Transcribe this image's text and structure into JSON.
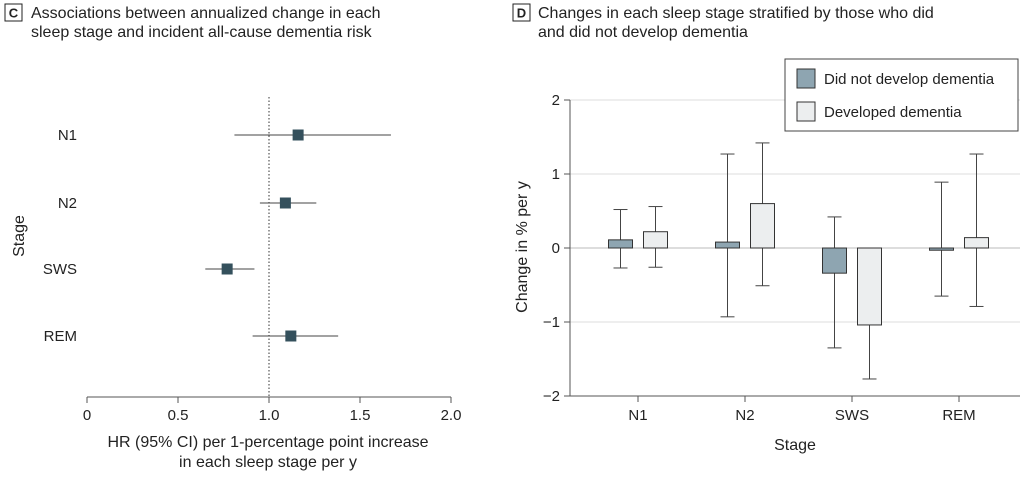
{
  "panel_c": {
    "letter": "C",
    "title_line1": "Associations between annualized change in each",
    "title_line2": "sleep stage and incident all-cause dementia risk"
  },
  "panel_d": {
    "letter": "D",
    "title_line1": "Changes in each sleep stage stratified by those who did",
    "title_line2": "and did not develop dementia"
  },
  "colors": {
    "marker": "#34505c",
    "bar_not_developed": "#8ea5b1",
    "bar_developed": "#eceeef",
    "axis": "#555555",
    "grid": "#dddddd"
  },
  "chart_data": [
    {
      "type": "forest",
      "xlabel_line1": "HR (95% CI) per 1-percentage point increase",
      "xlabel_line2": "in each sleep stage per y",
      "ylabel": "Stage",
      "xlim": [
        0,
        2.0
      ],
      "xticks": [
        "0",
        "0.5",
        "1.0",
        "1.5",
        "2.0"
      ],
      "reference_line": 1.0,
      "rows": [
        {
          "label": "N1",
          "hr": 1.16,
          "lo": 0.81,
          "hi": 1.67
        },
        {
          "label": "N2",
          "hr": 1.09,
          "lo": 0.95,
          "hi": 1.26
        },
        {
          "label": "SWS",
          "hr": 0.77,
          "lo": 0.65,
          "hi": 0.92
        },
        {
          "label": "REM",
          "hr": 1.12,
          "lo": 0.91,
          "hi": 1.38
        }
      ]
    },
    {
      "type": "bar",
      "xlabel": "Stage",
      "ylabel": "Change in % per y",
      "ylim": [
        -2,
        2
      ],
      "yticks": [
        "−2",
        "−1",
        "0",
        "1",
        "2"
      ],
      "grid": true,
      "legend_position": "top-right",
      "categories": [
        "N1",
        "N2",
        "SWS",
        "REM"
      ],
      "series": [
        {
          "name": "Did not develop dementia",
          "values": [
            0.11,
            0.08,
            -0.34,
            -0.03
          ],
          "err_lo": [
            -0.27,
            -0.93,
            -1.35,
            -0.65
          ],
          "err_hi": [
            0.52,
            1.27,
            0.42,
            0.89
          ]
        },
        {
          "name": "Developed dementia",
          "values": [
            0.22,
            0.6,
            -1.04,
            0.14
          ],
          "err_lo": [
            -0.26,
            -0.51,
            -1.77,
            -0.79
          ],
          "err_hi": [
            0.56,
            1.42,
            null,
            1.27
          ]
        }
      ]
    }
  ]
}
